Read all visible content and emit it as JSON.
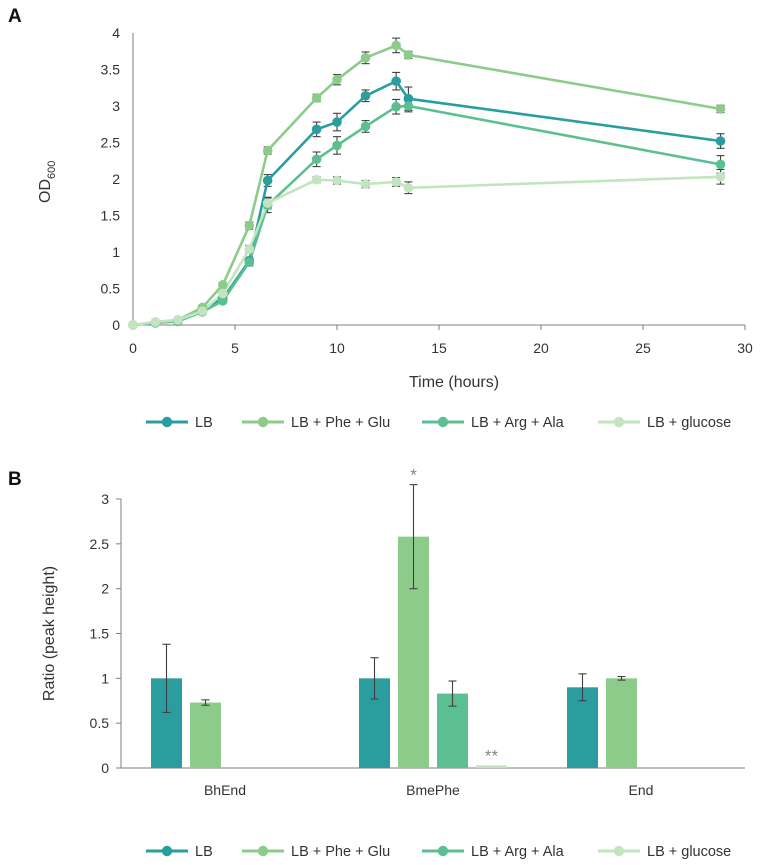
{
  "colors": {
    "LB": "#2a9d9f",
    "LB + Phe + Glu": "#8dcb8a",
    "LB + Arg + Ala": "#5cbf92",
    "LB + glucose": "#c2e5c0",
    "axis": "#7f7f7f",
    "error": "#404040"
  },
  "chart_data": [
    {
      "panel": "A",
      "type": "line",
      "xlabel": "Time (hours)",
      "ylabel": "OD",
      "ylabel_sub": "600",
      "xlim": [
        0,
        30
      ],
      "ylim": [
        0,
        4
      ],
      "xticks": [
        "0",
        "5",
        "10",
        "15",
        "20",
        "25",
        "30"
      ],
      "yticks": [
        "0",
        "0.5",
        "1",
        "1.5",
        "2",
        "2.5",
        "3",
        "3.5",
        "4"
      ],
      "grid": false,
      "legend_position": "bottom",
      "series": [
        {
          "name": "LB",
          "x": [
            0,
            1.1,
            2.2,
            3.4,
            4.4,
            5.7,
            6.6,
            9.0,
            10.0,
            11.4,
            12.9,
            13.5,
            28.8
          ],
          "y": [
            0,
            0.03,
            0.06,
            0.22,
            0.36,
            0.88,
            1.98,
            2.68,
            2.78,
            3.14,
            3.34,
            3.1,
            2.52
          ],
          "err": [
            0,
            0,
            0.02,
            0.03,
            0.03,
            0.05,
            0.08,
            0.1,
            0.12,
            0.08,
            0.12,
            0.16,
            0.1
          ]
        },
        {
          "name": "LB + Phe + Glu",
          "x": [
            0,
            1.1,
            2.2,
            3.4,
            4.4,
            5.7,
            6.6,
            9.0,
            10.0,
            11.4,
            12.9,
            13.5,
            28.8
          ],
          "y": [
            0,
            0.04,
            0.07,
            0.24,
            0.55,
            1.36,
            2.39,
            3.11,
            3.36,
            3.66,
            3.83,
            3.7,
            2.96
          ],
          "err": [
            0,
            0,
            0.02,
            0.03,
            0.03,
            0.05,
            0.05,
            0.05,
            0.07,
            0.08,
            0.1,
            0.05,
            0.05
          ]
        },
        {
          "name": "LB + Arg + Ala",
          "x": [
            0,
            1.1,
            2.2,
            3.4,
            4.4,
            5.7,
            6.6,
            9.0,
            10.0,
            11.4,
            12.9,
            13.5,
            28.8
          ],
          "y": [
            0,
            0.03,
            0.05,
            0.18,
            0.33,
            0.86,
            1.64,
            2.27,
            2.46,
            2.72,
            2.99,
            3.0,
            2.2
          ],
          "err": [
            0,
            0,
            0.02,
            0.03,
            0.03,
            0.05,
            0.1,
            0.1,
            0.12,
            0.08,
            0.1,
            0.08,
            0.12
          ]
        },
        {
          "name": "LB + glucose",
          "x": [
            0,
            1.1,
            2.2,
            3.4,
            4.4,
            5.7,
            6.6,
            9.0,
            10.0,
            11.4,
            12.9,
            13.5,
            28.8
          ],
          "y": [
            0,
            0.04,
            0.07,
            0.19,
            0.43,
            1.04,
            1.67,
            1.99,
            1.98,
            1.93,
            1.96,
            1.88,
            2.03
          ],
          "err": [
            0,
            0,
            0.02,
            0.03,
            0.03,
            0.05,
            0.08,
            0.04,
            0.05,
            0.05,
            0.06,
            0.08,
            0.1
          ]
        }
      ]
    },
    {
      "panel": "B",
      "type": "bar",
      "xlabel": "",
      "ylabel": "Ratio (peak height)",
      "ylim": [
        0,
        3
      ],
      "yticks": [
        "0",
        "0.5",
        "1",
        "1.5",
        "2",
        "2.5",
        "3"
      ],
      "categories": [
        "BhEnd",
        "BmePhe",
        "End"
      ],
      "grid": false,
      "legend_position": "bottom",
      "series": [
        {
          "name": "LB",
          "values": [
            1.0,
            1.0,
            0.9
          ],
          "err": [
            0.38,
            0.23,
            0.15
          ]
        },
        {
          "name": "LB + Phe + Glu",
          "values": [
            0.73,
            2.58,
            1.0
          ],
          "err": [
            0.03,
            0.58,
            0.02
          ]
        },
        {
          "name": "LB + Arg + Ala",
          "values": [
            null,
            0.83,
            null
          ],
          "err": [
            null,
            0.14,
            null
          ]
        },
        {
          "name": "LB + glucose",
          "values": [
            null,
            0.03,
            null
          ],
          "err": [
            null,
            0,
            null
          ]
        }
      ],
      "annotations": [
        {
          "category": "BmePhe",
          "series": "LB + Phe + Glu",
          "text": "*"
        },
        {
          "category": "BmePhe",
          "series": "LB + glucose",
          "text": "**"
        }
      ]
    }
  ]
}
